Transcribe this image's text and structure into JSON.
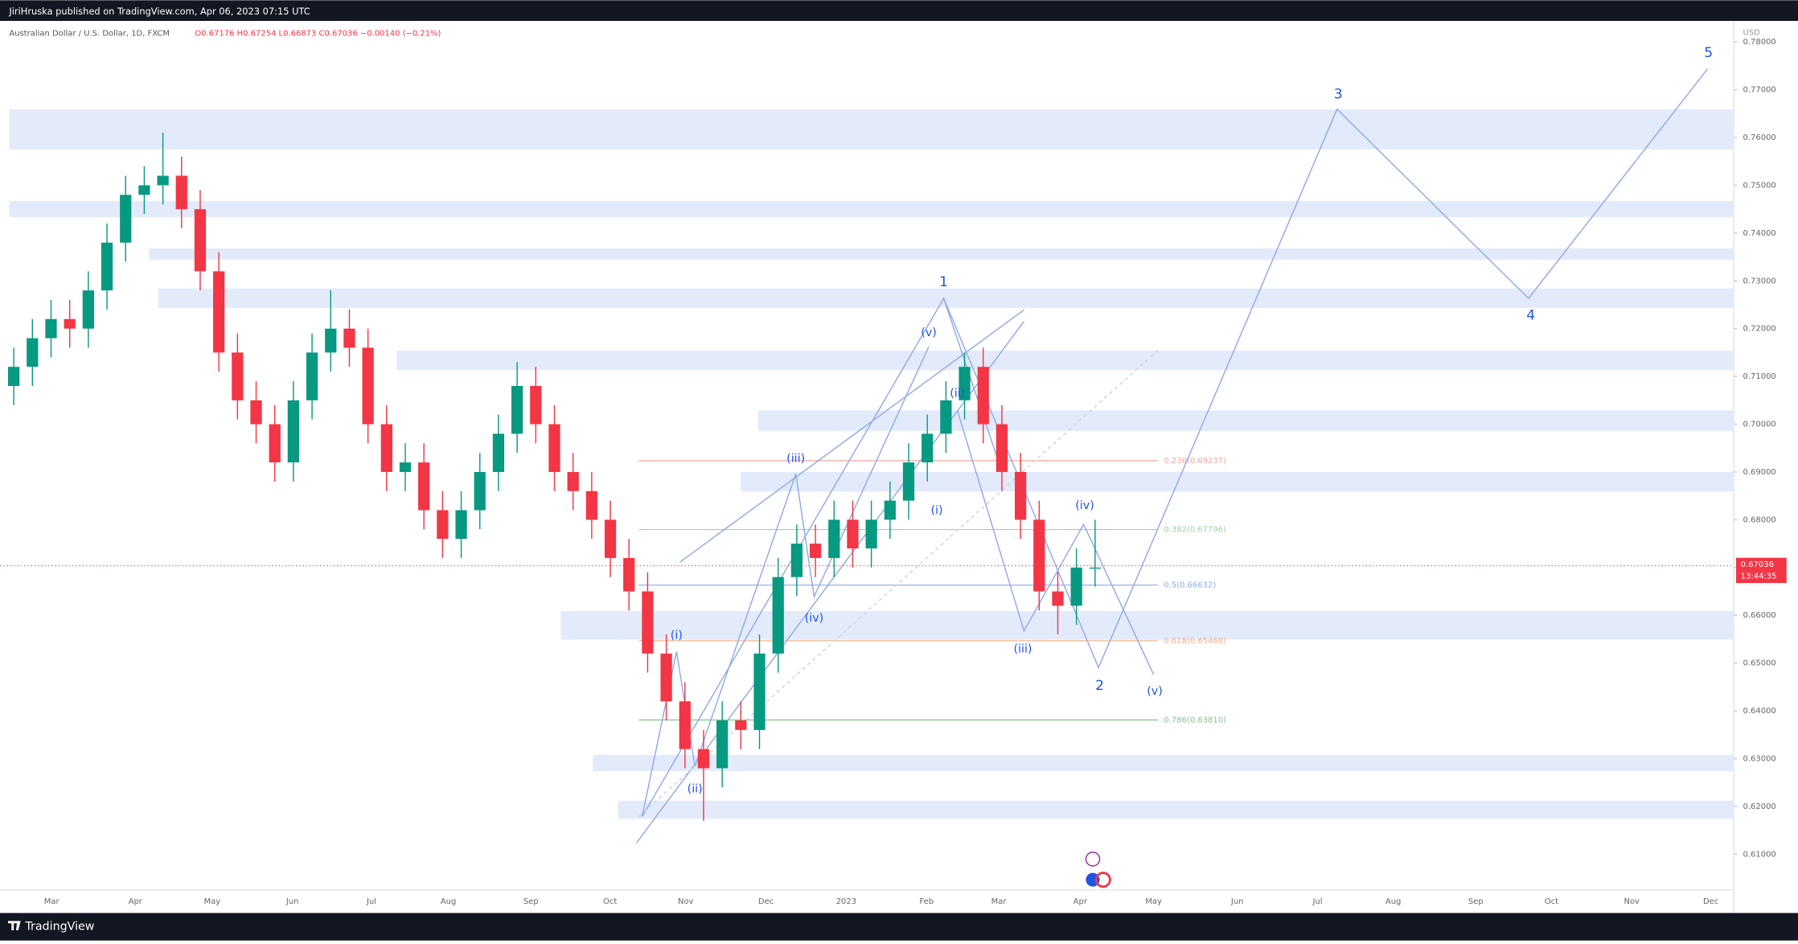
{
  "header": {
    "publisher": "JiriHruska published on TradingView.com, Apr 06, 2023 07:15 UTC",
    "symbol": "Australian Dollar / U.S. Dollar, 1D, FXCM",
    "ohlc": "O0.67176 H0.67254 L0.66873 C0.67036 −0.00140 (−0.21%)"
  },
  "footer": {
    "brand": "TradingView"
  },
  "chart_data": {
    "type": "candlestick",
    "currency": "USD",
    "up_color": "#089981",
    "down_color": "#f23645",
    "categories": [
      null,
      null,
      null,
      null,
      null,
      null,
      null,
      null,
      null,
      null,
      null,
      null,
      null,
      null,
      null,
      null,
      null,
      null,
      null,
      null,
      null,
      null,
      null,
      null,
      null,
      null,
      null,
      null,
      null,
      null,
      null,
      null,
      null,
      null,
      null,
      null,
      null,
      null,
      null,
      null,
      null,
      null,
      null,
      null,
      null,
      null,
      null,
      null,
      null,
      null,
      null,
      null,
      null,
      null,
      null,
      null,
      null,
      null,
      null
    ],
    "open": [
      0.708,
      0.712,
      0.718,
      0.722,
      0.72,
      0.728,
      0.738,
      0.748,
      0.75,
      0.752,
      0.745,
      0.732,
      0.715,
      0.705,
      0.7,
      0.692,
      0.705,
      0.715,
      0.72,
      0.716,
      0.7,
      0.69,
      0.692,
      0.682,
      0.676,
      0.682,
      0.69,
      0.698,
      0.708,
      0.7,
      0.69,
      0.686,
      0.68,
      0.672,
      0.665,
      0.652,
      0.642,
      0.632,
      0.628,
      0.638,
      0.636,
      0.652,
      0.668,
      0.675,
      0.672,
      0.68,
      0.674,
      0.68,
      0.684,
      0.692,
      0.698,
      0.705,
      0.712,
      0.7,
      0.69,
      0.68,
      0.665,
      0.662,
      0.67
    ],
    "high": [
      0.716,
      0.722,
      0.726,
      0.726,
      0.732,
      0.742,
      0.752,
      0.754,
      0.761,
      0.756,
      0.749,
      0.736,
      0.719,
      0.709,
      0.704,
      0.709,
      0.719,
      0.728,
      0.724,
      0.72,
      0.704,
      0.696,
      0.696,
      0.686,
      0.686,
      0.694,
      0.702,
      0.713,
      0.712,
      0.704,
      0.694,
      0.69,
      0.684,
      0.676,
      0.669,
      0.656,
      0.646,
      0.636,
      0.642,
      0.642,
      0.656,
      0.672,
      0.679,
      0.679,
      0.684,
      0.684,
      0.684,
      0.688,
      0.696,
      0.702,
      0.709,
      0.715,
      0.716,
      0.704,
      0.694,
      0.684,
      0.669,
      0.674,
      0.68
    ],
    "low": [
      0.704,
      0.708,
      0.714,
      0.716,
      0.716,
      0.724,
      0.734,
      0.744,
      0.746,
      0.741,
      0.728,
      0.711,
      0.701,
      0.696,
      0.688,
      0.688,
      0.701,
      0.711,
      0.712,
      0.696,
      0.686,
      0.686,
      0.678,
      0.672,
      0.672,
      0.678,
      0.686,
      0.694,
      0.696,
      0.686,
      0.682,
      0.676,
      0.668,
      0.661,
      0.648,
      0.638,
      0.628,
      0.617,
      0.624,
      0.632,
      0.632,
      0.648,
      0.664,
      0.668,
      0.668,
      0.67,
      0.67,
      0.676,
      0.68,
      0.688,
      0.694,
      0.701,
      0.696,
      0.686,
      0.676,
      0.661,
      0.656,
      0.658,
      0.666
    ],
    "close": [
      0.712,
      0.718,
      0.722,
      0.72,
      0.728,
      0.738,
      0.748,
      0.75,
      0.752,
      0.745,
      0.732,
      0.715,
      0.705,
      0.7,
      0.692,
      0.705,
      0.715,
      0.72,
      0.716,
      0.7,
      0.69,
      0.692,
      0.682,
      0.676,
      0.682,
      0.69,
      0.698,
      0.708,
      0.7,
      0.69,
      0.686,
      0.68,
      0.672,
      0.665,
      0.652,
      0.642,
      0.632,
      0.628,
      0.638,
      0.636,
      0.652,
      0.668,
      0.675,
      0.672,
      0.68,
      0.674,
      0.68,
      0.684,
      0.692,
      0.698,
      0.705,
      0.712,
      0.7,
      0.69,
      0.68,
      0.665,
      0.662,
      0.67,
      0.67
    ],
    "x_labels": [
      "Mar",
      "Apr",
      "May",
      "Jun",
      "Jul",
      "Aug",
      "Sep",
      "Oct",
      "Nov",
      "Dec",
      "2023",
      "Feb",
      "Mar",
      "Apr",
      "May",
      "Jun",
      "Jul",
      "Aug",
      "Sep",
      "Oct",
      "Nov",
      "Dec"
    ],
    "ylim": [
      0.6025,
      0.7844
    ],
    "yticks": [
      {
        "value": 0.61,
        "label": "0.61000"
      },
      {
        "value": 0.62,
        "label": "0.62000"
      },
      {
        "value": 0.63,
        "label": "0.63000"
      },
      {
        "value": 0.64,
        "label": "0.64000"
      },
      {
        "value": 0.65,
        "label": "0.65000"
      },
      {
        "value": 0.66,
        "label": "0.66000"
      },
      {
        "value": 0.67,
        "label": "0.67000"
      },
      {
        "value": 0.68,
        "label": "0.68000"
      },
      {
        "value": 0.69,
        "label": "0.69000"
      },
      {
        "value": 0.7,
        "label": "0.70000"
      },
      {
        "value": 0.71,
        "label": "0.71000"
      },
      {
        "value": 0.72,
        "label": "0.72000"
      },
      {
        "value": 0.73,
        "label": "0.73000"
      },
      {
        "value": 0.74,
        "label": "0.74000"
      },
      {
        "value": 0.75,
        "label": "0.75000"
      },
      {
        "value": 0.76,
        "label": "0.76000"
      },
      {
        "value": 0.77,
        "label": "0.77000"
      },
      {
        "value": 0.78,
        "label": "0.78000"
      }
    ],
    "last_price": 0.67036,
    "countdown": "13:44:35",
    "zones": [
      [
        0.7575,
        0.7659
      ],
      [
        0.7433,
        0.7467
      ],
      [
        0.7344,
        0.7368
      ],
      [
        0.7243,
        0.7284
      ],
      [
        0.7113,
        0.7154
      ],
      [
        0.6986,
        0.7029
      ],
      [
        0.6859,
        0.69
      ],
      [
        0.6549,
        0.6609
      ],
      [
        0.6274,
        0.6308
      ],
      [
        0.6174,
        0.6212
      ]
    ],
    "fib_levels": [
      {
        "label": "0.236(0.69237)",
        "price": 0.69237,
        "color": "#f4a59c"
      },
      {
        "label": "0.382(0.67796)",
        "price": 0.67796,
        "color": "#9fd3a2"
      },
      {
        "label": "0.5(0.66632)",
        "price": 0.66632,
        "color": "#8eaae6"
      },
      {
        "label": "0.618(0.65468)",
        "price": 0.65468,
        "color": "#f5b183"
      },
      {
        "label": "0.786(0.63810)",
        "price": 0.6381,
        "color": "#86c58a"
      }
    ],
    "wave_labels": [
      "1",
      "2",
      "3",
      "4",
      "5",
      "(i)",
      "(ii)",
      "(iii)",
      "(iv)",
      "(v)",
      "(i)",
      "(ii)",
      "(iii)",
      "(iv)",
      "(v)"
    ]
  }
}
